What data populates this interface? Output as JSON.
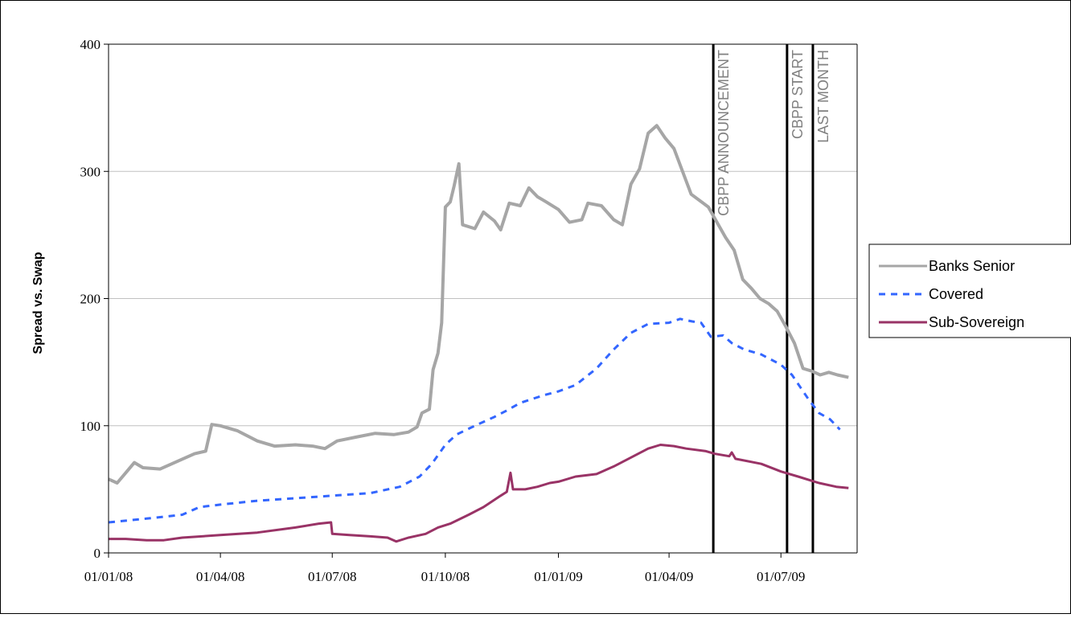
{
  "chart_data": {
    "type": "line",
    "title": "",
    "xlabel": "",
    "ylabel": "Spread vs. Swap",
    "ylim": [
      0,
      400
    ],
    "yticks": [
      0,
      100,
      200,
      300,
      400
    ],
    "xlim": [
      "01/01/08",
      "01/09/09"
    ],
    "xticks": [
      "01/01/08",
      "01/04/08",
      "01/07/08",
      "01/10/08",
      "01/01/09",
      "01/04/09",
      "01/07/09"
    ],
    "grid": "horizontal",
    "legend": "right",
    "events": [
      {
        "label": "CBPP ANNOUNCEMENT",
        "date": "07/05/09"
      },
      {
        "label": "CBPP START",
        "date": "06/07/09"
      },
      {
        "label": "LAST MONTH",
        "date": "27/07/09"
      }
    ],
    "series": [
      {
        "name": "Banks Senior",
        "color": "#a6a6a6",
        "style": "solid",
        "points": [
          [
            "01/01/08",
            58
          ],
          [
            "08/01/08",
            55
          ],
          [
            "15/01/08",
            63
          ],
          [
            "22/01/08",
            71
          ],
          [
            "29/01/08",
            67
          ],
          [
            "12/02/08",
            66
          ],
          [
            "26/02/08",
            72
          ],
          [
            "11/03/08",
            78
          ],
          [
            "20/03/08",
            80
          ],
          [
            "25/03/08",
            101
          ],
          [
            "01/04/08",
            100
          ],
          [
            "15/04/08",
            96
          ],
          [
            "01/05/08",
            88
          ],
          [
            "15/05/08",
            84
          ],
          [
            "01/06/08",
            85
          ],
          [
            "15/06/08",
            84
          ],
          [
            "25/06/08",
            82
          ],
          [
            "05/07/08",
            88
          ],
          [
            "20/07/08",
            91
          ],
          [
            "05/08/08",
            94
          ],
          [
            "20/08/08",
            93
          ],
          [
            "01/09/08",
            95
          ],
          [
            "08/09/08",
            99
          ],
          [
            "12/09/08",
            110
          ],
          [
            "18/09/08",
            113
          ],
          [
            "21/09/08",
            144
          ],
          [
            "25/09/08",
            157
          ],
          [
            "28/09/08",
            181
          ],
          [
            "01/10/08",
            272
          ],
          [
            "05/10/08",
            276
          ],
          [
            "08/10/08",
            288
          ],
          [
            "12/10/08",
            306
          ],
          [
            "15/10/08",
            258
          ],
          [
            "25/10/08",
            255
          ],
          [
            "01/11/08",
            268
          ],
          [
            "10/11/08",
            261
          ],
          [
            "15/11/08",
            254
          ],
          [
            "22/11/08",
            275
          ],
          [
            "01/12/08",
            273
          ],
          [
            "08/12/08",
            287
          ],
          [
            "15/12/08",
            280
          ],
          [
            "22/12/08",
            276
          ],
          [
            "01/01/09",
            270
          ],
          [
            "10/01/09",
            260
          ],
          [
            "20/01/09",
            262
          ],
          [
            "25/01/09",
            275
          ],
          [
            "05/02/09",
            273
          ],
          [
            "15/02/09",
            262
          ],
          [
            "22/02/09",
            258
          ],
          [
            "01/03/09",
            290
          ],
          [
            "08/03/09",
            302
          ],
          [
            "15/03/09",
            330
          ],
          [
            "22/03/09",
            336
          ],
          [
            "29/03/09",
            326
          ],
          [
            "05/04/09",
            318
          ],
          [
            "12/04/09",
            300
          ],
          [
            "19/04/09",
            282
          ],
          [
            "26/04/09",
            277
          ],
          [
            "03/05/09",
            272
          ],
          [
            "10/05/09",
            260
          ],
          [
            "17/05/09",
            248
          ],
          [
            "24/05/09",
            238
          ],
          [
            "31/05/09",
            215
          ],
          [
            "07/06/09",
            208
          ],
          [
            "14/06/09",
            200
          ],
          [
            "21/06/09",
            196
          ],
          [
            "28/06/09",
            190
          ],
          [
            "05/07/09",
            178
          ],
          [
            "12/07/09",
            165
          ],
          [
            "19/07/09",
            145
          ],
          [
            "26/07/09",
            143
          ],
          [
            "02/08/09",
            140
          ],
          [
            "09/08/09",
            142
          ],
          [
            "16/08/09",
            140
          ],
          [
            "25/08/09",
            138
          ]
        ]
      },
      {
        "name": "Covered",
        "color": "#3366ff",
        "style": "dashed",
        "points": [
          [
            "01/01/08",
            24
          ],
          [
            "01/02/08",
            27
          ],
          [
            "01/03/08",
            30
          ],
          [
            "15/03/08",
            36
          ],
          [
            "01/04/08",
            38
          ],
          [
            "01/05/08",
            41
          ],
          [
            "01/06/08",
            43
          ],
          [
            "01/07/08",
            45
          ],
          [
            "01/08/08",
            47
          ],
          [
            "25/08/08",
            52
          ],
          [
            "10/09/08",
            60
          ],
          [
            "20/09/08",
            70
          ],
          [
            "01/10/08",
            85
          ],
          [
            "10/10/08",
            93
          ],
          [
            "25/10/08",
            100
          ],
          [
            "10/11/08",
            107
          ],
          [
            "20/11/08",
            112
          ],
          [
            "01/12/08",
            118
          ],
          [
            "20/12/08",
            124
          ],
          [
            "01/01/09",
            127
          ],
          [
            "15/01/09",
            132
          ],
          [
            "01/02/09",
            145
          ],
          [
            "15/02/09",
            160
          ],
          [
            "01/03/09",
            173
          ],
          [
            "15/03/09",
            180
          ],
          [
            "01/04/09",
            181
          ],
          [
            "10/04/09",
            184
          ],
          [
            "20/04/09",
            182
          ],
          [
            "27/04/09",
            181
          ],
          [
            "05/05/09",
            170
          ],
          [
            "15/05/09",
            171
          ],
          [
            "22/05/09",
            165
          ],
          [
            "01/06/09",
            160
          ],
          [
            "15/06/09",
            156
          ],
          [
            "01/07/09",
            148
          ],
          [
            "10/07/09",
            140
          ],
          [
            "17/07/09",
            130
          ],
          [
            "24/07/09",
            120
          ],
          [
            "01/08/09",
            110
          ],
          [
            "10/08/09",
            105
          ],
          [
            "18/08/09",
            97
          ]
        ]
      },
      {
        "name": "Sub-Sovereign",
        "color": "#993366",
        "style": "solid",
        "points": [
          [
            "01/01/08",
            11
          ],
          [
            "15/01/08",
            11
          ],
          [
            "01/02/08",
            10
          ],
          [
            "15/02/08",
            10
          ],
          [
            "01/03/08",
            12
          ],
          [
            "01/04/08",
            14
          ],
          [
            "01/05/08",
            16
          ],
          [
            "01/06/08",
            20
          ],
          [
            "20/06/08",
            23
          ],
          [
            "30/06/08",
            24
          ],
          [
            "01/07/08",
            15
          ],
          [
            "15/07/08",
            14
          ],
          [
            "01/08/08",
            13
          ],
          [
            "15/08/08",
            12
          ],
          [
            "22/08/08",
            9
          ],
          [
            "01/09/08",
            12
          ],
          [
            "15/09/08",
            15
          ],
          [
            "25/09/08",
            20
          ],
          [
            "05/10/08",
            23
          ],
          [
            "20/10/08",
            30
          ],
          [
            "01/11/08",
            36
          ],
          [
            "15/11/08",
            45
          ],
          [
            "20/11/08",
            48
          ],
          [
            "23/11/08",
            63
          ],
          [
            "25/11/08",
            50
          ],
          [
            "05/12/08",
            50
          ],
          [
            "15/12/08",
            52
          ],
          [
            "25/12/08",
            55
          ],
          [
            "01/01/09",
            56
          ],
          [
            "15/01/09",
            60
          ],
          [
            "01/02/09",
            62
          ],
          [
            "15/02/09",
            68
          ],
          [
            "01/03/09",
            75
          ],
          [
            "15/03/09",
            82
          ],
          [
            "25/03/09",
            85
          ],
          [
            "05/04/09",
            84
          ],
          [
            "15/04/09",
            82
          ],
          [
            "01/05/09",
            80
          ],
          [
            "08/05/09",
            78
          ],
          [
            "20/05/09",
            76
          ],
          [
            "22/05/09",
            79
          ],
          [
            "25/05/09",
            74
          ],
          [
            "15/06/09",
            70
          ],
          [
            "01/07/09",
            64
          ],
          [
            "15/07/09",
            60
          ],
          [
            "01/08/09",
            55
          ],
          [
            "15/08/09",
            52
          ],
          [
            "25/08/09",
            51
          ]
        ]
      }
    ]
  }
}
